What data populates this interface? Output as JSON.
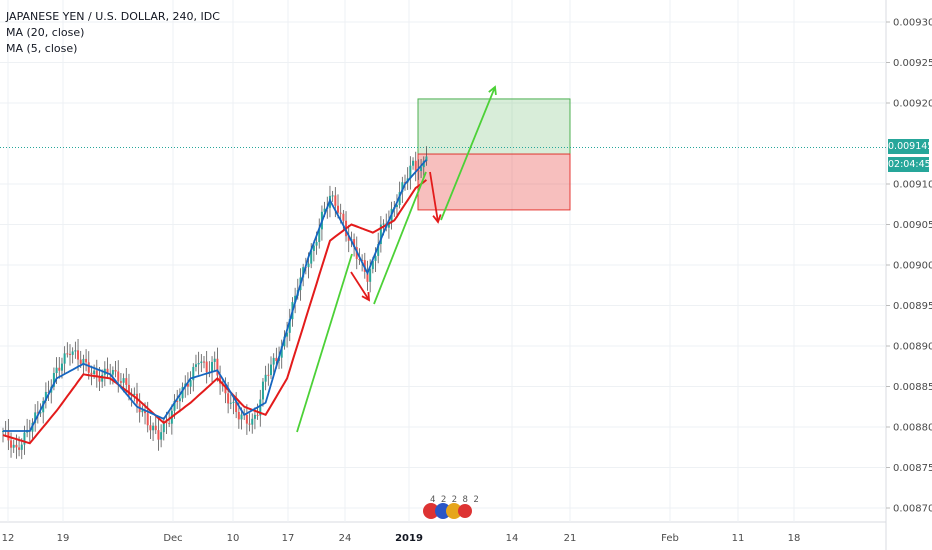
{
  "header": {
    "title": "JAPANESE YEN / U.S. DOLLAR, 240, IDC",
    "indicators": [
      "MA (20, close)",
      "MA (5, close)"
    ]
  },
  "price_tag": {
    "value": "0.009145",
    "timer": "02:04:45"
  },
  "badge_text": "4 2 2 8  2",
  "colors": {
    "up": "#26a69a",
    "down": "#ef5350",
    "ma20": "#e31b1b",
    "ma5": "#1565c0",
    "price_line": "#26a69a",
    "grid": "#eef1f4",
    "arrow_green": "#4cd137",
    "arrow_red": "#e31b1b",
    "target_fill": "rgba(76,175,80,0.22)",
    "stop_fill": "rgba(229,57,53,0.32)"
  },
  "chart_data": {
    "type": "candlestick",
    "title": "JAPANESE YEN / U.S. DOLLAR, 240, IDC",
    "y_ticks": [
      "0.009300",
      "0.009250",
      "0.009200",
      "0.009100",
      "0.009050",
      "0.009000",
      "0.008950",
      "0.008900",
      "0.008850",
      "0.008800",
      "0.008750",
      "0.008700"
    ],
    "x_ticks": [
      "12",
      "19",
      "Dec",
      "10",
      "17",
      "24",
      "2019",
      "14",
      "21",
      "Feb",
      "11",
      "18"
    ],
    "ylim": [
      0.00869,
      0.00931
    ],
    "price_line": 0.009145,
    "close_path": [
      [
        0,
        0.008795
      ],
      [
        5,
        0.00877
      ],
      [
        10,
        0.0088
      ],
      [
        15,
        0.00883
      ],
      [
        20,
        0.00887
      ],
      [
        25,
        0.008895
      ],
      [
        30,
        0.00888
      ],
      [
        35,
        0.00886
      ],
      [
        40,
        0.00887
      ],
      [
        45,
        0.008855
      ],
      [
        50,
        0.00883
      ],
      [
        55,
        0.0088
      ],
      [
        58,
        0.00879
      ],
      [
        62,
        0.00881
      ],
      [
        65,
        0.008835
      ],
      [
        70,
        0.00886
      ],
      [
        73,
        0.008885
      ],
      [
        76,
        0.00887
      ],
      [
        79,
        0.00888
      ],
      [
        82,
        0.008845
      ],
      [
        85,
        0.00883
      ],
      [
        88,
        0.008815
      ],
      [
        90,
        0.00881
      ],
      [
        93,
        0.008805
      ],
      [
        95,
        0.00882
      ],
      [
        98,
        0.008865
      ],
      [
        101,
        0.00888
      ],
      [
        104,
        0.008895
      ],
      [
        107,
        0.008935
      ],
      [
        110,
        0.008975
      ],
      [
        113,
        0.009
      ],
      [
        116,
        0.00902
      ],
      [
        119,
        0.00906
      ],
      [
        122,
        0.009085
      ],
      [
        125,
        0.00907
      ],
      [
        128,
        0.00904
      ],
      [
        131,
        0.00902
      ],
      [
        134,
        0.009
      ],
      [
        136,
        0.008985
      ],
      [
        138,
        0.009
      ],
      [
        141,
        0.009045
      ],
      [
        144,
        0.009055
      ],
      [
        147,
        0.00908
      ],
      [
        150,
        0.009105
      ],
      [
        153,
        0.009125
      ],
      [
        156,
        0.009115
      ],
      [
        158,
        0.00914
      ]
    ],
    "series": [
      {
        "name": "MA (20, close)",
        "values": [
          [
            0,
            0.00879
          ],
          [
            10,
            0.00878
          ],
          [
            20,
            0.00882
          ],
          [
            30,
            0.008865
          ],
          [
            40,
            0.00886
          ],
          [
            50,
            0.008835
          ],
          [
            60,
            0.008805
          ],
          [
            70,
            0.00883
          ],
          [
            80,
            0.00886
          ],
          [
            90,
            0.008825
          ],
          [
            98,
            0.008815
          ],
          [
            106,
            0.00886
          ],
          [
            114,
            0.008945
          ],
          [
            122,
            0.00903
          ],
          [
            130,
            0.00905
          ],
          [
            138,
            0.00904
          ],
          [
            146,
            0.009055
          ],
          [
            154,
            0.009095
          ],
          [
            158,
            0.009105
          ]
        ]
      },
      {
        "name": "MA (5, close)",
        "values": [
          [
            0,
            0.008795
          ],
          [
            10,
            0.008795
          ],
          [
            20,
            0.00886
          ],
          [
            30,
            0.008878
          ],
          [
            40,
            0.008865
          ],
          [
            50,
            0.008825
          ],
          [
            60,
            0.00881
          ],
          [
            70,
            0.00886
          ],
          [
            80,
            0.00887
          ],
          [
            90,
            0.008815
          ],
          [
            98,
            0.00883
          ],
          [
            106,
            0.00892
          ],
          [
            114,
            0.00901
          ],
          [
            122,
            0.00908
          ],
          [
            130,
            0.00903
          ],
          [
            136,
            0.00899
          ],
          [
            142,
            0.00904
          ],
          [
            150,
            0.0091
          ],
          [
            158,
            0.00913
          ]
        ]
      }
    ],
    "zones": {
      "target": {
        "top": 0.009205,
        "bottom": 0.009137
      },
      "stop": {
        "top": 0.009137,
        "bottom": 0.009068
      }
    }
  }
}
